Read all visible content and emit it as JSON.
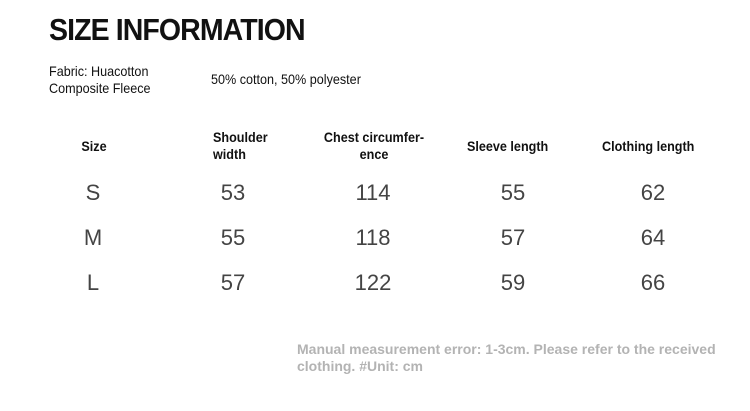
{
  "title": "SIZE INFORMATION",
  "fabric": {
    "label_line1": "Fabric: Huacotton",
    "label_line2": "Composite Fleece",
    "composition": "50% cotton, 50% polyester"
  },
  "table": {
    "headers": [
      "Size",
      "Shoulder width",
      "Chest circumfer-ence",
      "Sleeve length",
      "Clothing length"
    ],
    "rows": [
      [
        "S",
        "53",
        "114",
        "55",
        "62"
      ],
      [
        "M",
        "55",
        "118",
        "57",
        "64"
      ],
      [
        "L",
        "57",
        "122",
        "59",
        "66"
      ]
    ]
  },
  "note": "Manual measurement error: 1-3cm. Please refer to the received clothing. #Unit: cm"
}
